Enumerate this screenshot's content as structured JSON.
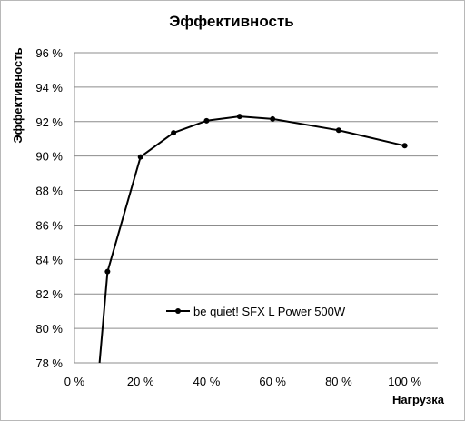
{
  "chart_data": {
    "type": "line",
    "title": "Эффективность",
    "xlabel": "Нагрузка",
    "ylabel": "Эффективность",
    "xlim": [
      0,
      110
    ],
    "ylim": [
      78,
      96
    ],
    "x_ticks": [
      0,
      20,
      40,
      60,
      80,
      100
    ],
    "x_tick_labels": [
      "0 %",
      "20 %",
      "40 %",
      "60 %",
      "80 %",
      "100 %"
    ],
    "y_ticks": [
      78,
      80,
      82,
      84,
      86,
      88,
      90,
      92,
      94,
      96
    ],
    "y_tick_labels": [
      "78 %",
      "80 %",
      "82 %",
      "84 %",
      "86 %",
      "88 %",
      "90 %",
      "92 %",
      "94 %",
      "96 %"
    ],
    "grid": "horizontal",
    "legend_position": "inside-bottom-center",
    "series": [
      {
        "name": "be quiet! SFX L Power 500W",
        "color": "#000000",
        "x": [
          10,
          20,
          30,
          40,
          50,
          60,
          80,
          100
        ],
        "y": [
          83.3,
          89.95,
          91.35,
          92.05,
          92.3,
          92.15,
          91.5,
          90.6
        ],
        "line_start": {
          "x": 7.6,
          "y": 78
        }
      }
    ]
  }
}
